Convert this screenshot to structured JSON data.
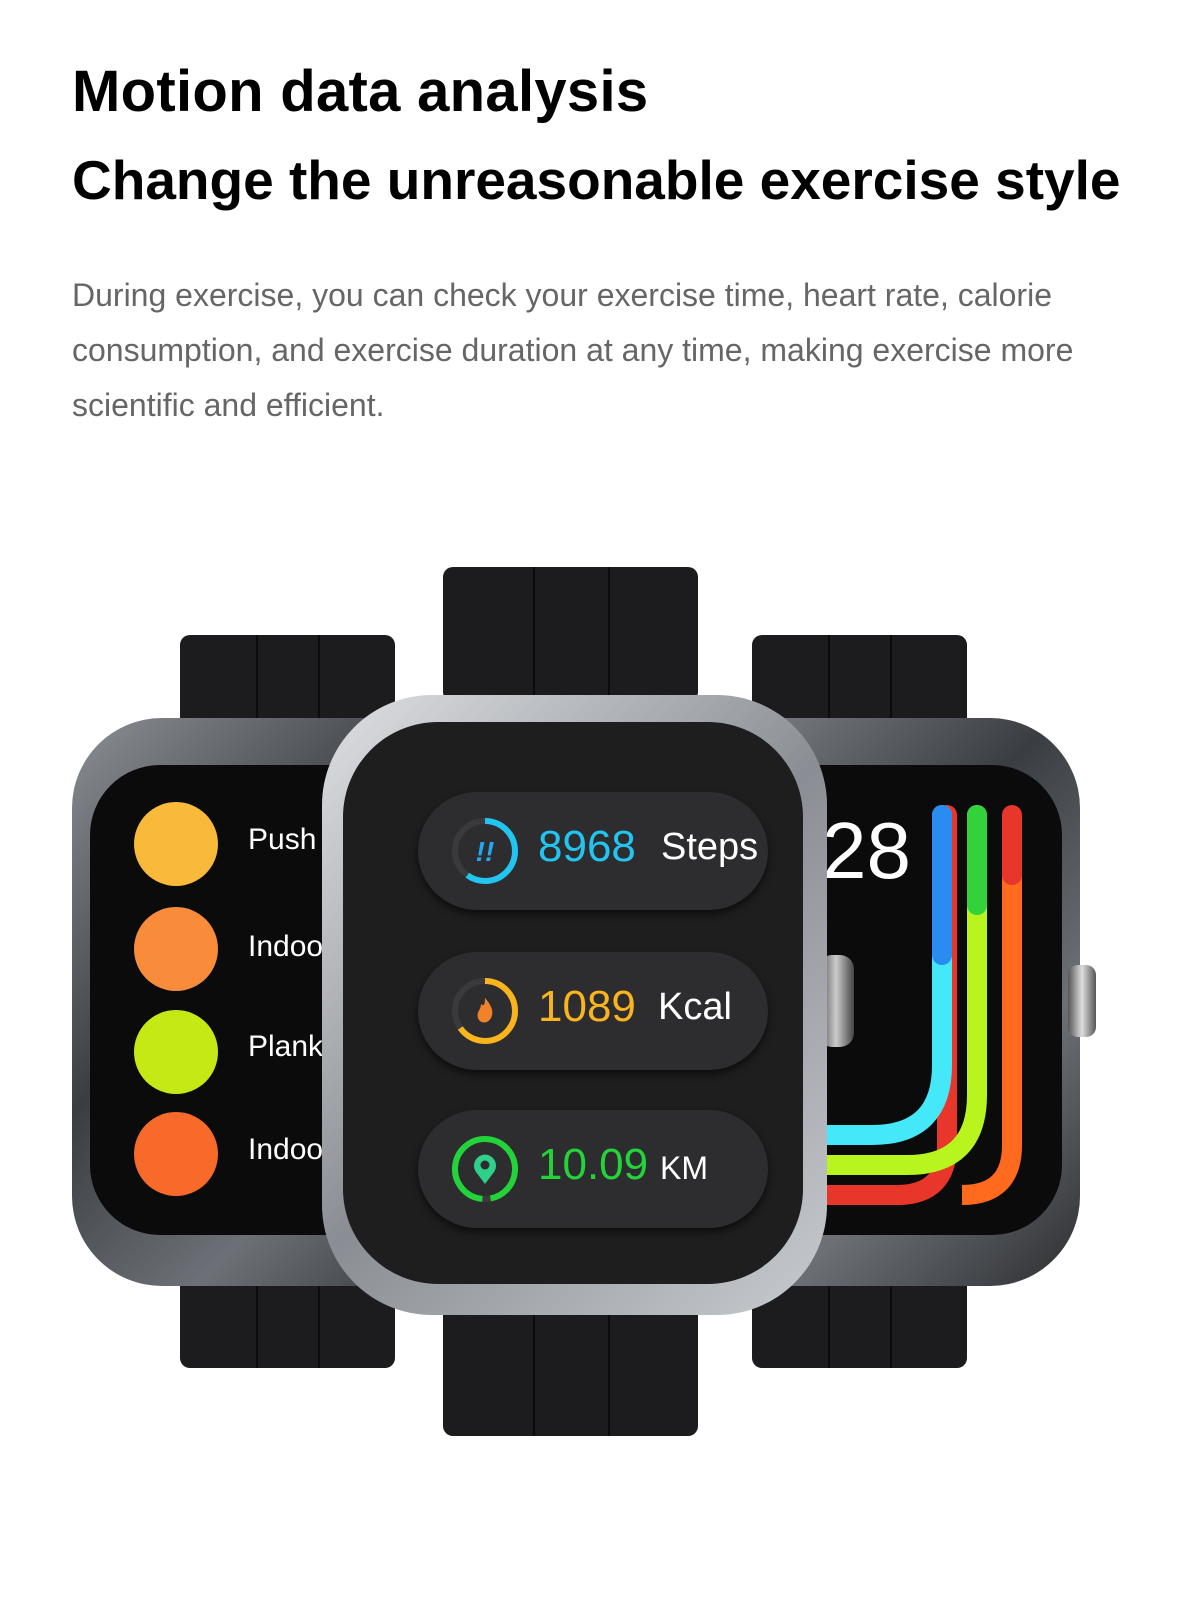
{
  "heading": {
    "title": "Motion data analysis",
    "subtitle": "Change the unreasonable exercise style",
    "description": "During exercise, you can check your exercise time, heart rate, calorie consumption, and exercise duration at any time, making exercise more scientific and efficient."
  },
  "left_watch": {
    "exercises": [
      {
        "label": "Push",
        "icon": "push-up-icon",
        "color": "#f9b93a"
      },
      {
        "label": "Indoor",
        "icon": "treadmill-icon",
        "color": "#f98c3a"
      },
      {
        "label": "Plank",
        "icon": "plank-icon",
        "color": "#c4e914"
      },
      {
        "label": "Indoor",
        "icon": "elliptical-icon",
        "color": "#f76a2a"
      }
    ]
  },
  "center_watch": {
    "stats": [
      {
        "value": "8968",
        "unit": "Steps",
        "icon": "footsteps-icon",
        "color": "#22c4f0",
        "progress": 0.6
      },
      {
        "value": "1089",
        "unit": "Kcal",
        "icon": "flame-icon",
        "color": "#f9b41e",
        "progress": 0.65
      },
      {
        "value": "10.09",
        "unit": "KM",
        "icon": "location-pin-icon",
        "color": "#22d43a",
        "progress": 0.95
      }
    ]
  },
  "right_watch": {
    "time_fragment": "28",
    "ring_colors": [
      "#2a8cf0",
      "#44e8f8",
      "#33d23a",
      "#b8f51e",
      "#e8362a",
      "#ff6a1e"
    ]
  }
}
